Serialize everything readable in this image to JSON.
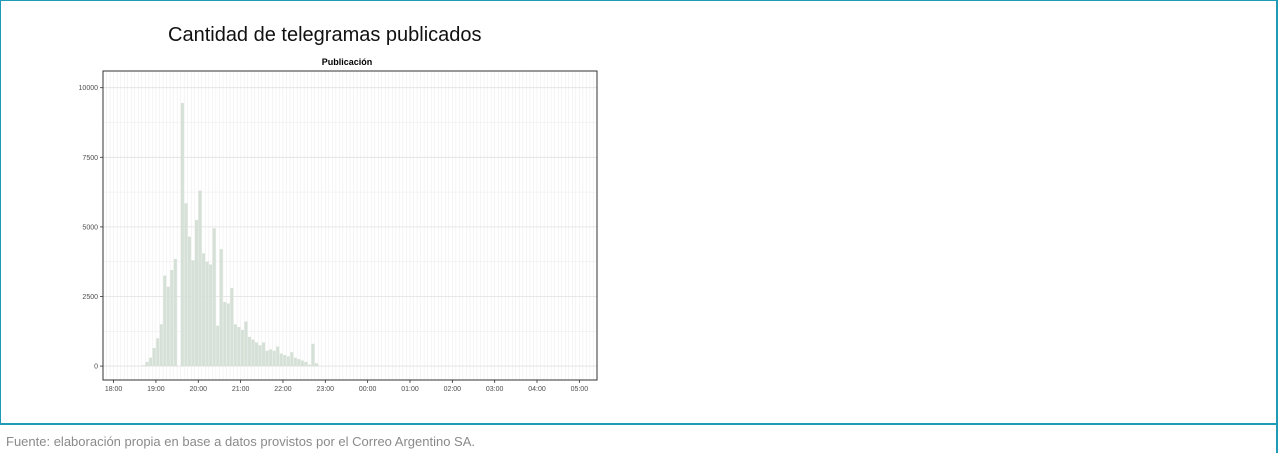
{
  "header": {
    "title": "Cantidad de telegramas publicados"
  },
  "footer": {
    "source": "Fuente: elaboración propia en base a datos provistos por el Correo Argentino SA."
  },
  "colors": {
    "bar": "#d5e0d6",
    "frame": "#1f9bb5",
    "grid": "#ebebeb",
    "panel_border": "#333333"
  },
  "chart_data": {
    "type": "bar",
    "title": "Publicación",
    "xlabel": "",
    "ylabel": "",
    "ylim": [
      -500,
      10600
    ],
    "xlim": [
      "17:45",
      "05:25"
    ],
    "y_ticks": [
      0,
      2500,
      5000,
      7500,
      10000
    ],
    "y_tick_labels": [
      "0",
      "2500",
      "5000",
      "7500",
      "10000"
    ],
    "x_ticks": [
      "18:00",
      "19:00",
      "20:00",
      "21:00",
      "22:00",
      "23:00",
      "00:00",
      "01:00",
      "02:00",
      "03:00",
      "04:00",
      "05:00"
    ],
    "x_tick_labels": [
      "18:00",
      "19:00",
      "20:00",
      "21:00",
      "22:00",
      "23:00",
      "00:00",
      "01:00",
      "02:00",
      "03:00",
      "04:00",
      "05:00"
    ],
    "grid": true,
    "bin_minutes": 5,
    "x": [
      "18:40",
      "18:45",
      "18:50",
      "18:55",
      "19:00",
      "19:05",
      "19:10",
      "19:15",
      "19:20",
      "19:25",
      "19:30",
      "19:35",
      "19:40",
      "19:45",
      "19:50",
      "19:55",
      "20:00",
      "20:05",
      "20:10",
      "20:15",
      "20:20",
      "20:25",
      "20:30",
      "20:35",
      "20:40",
      "20:45",
      "20:50",
      "20:55",
      "21:00",
      "21:05",
      "21:10",
      "21:15",
      "21:20",
      "21:25",
      "21:30",
      "21:35",
      "21:40",
      "21:45",
      "21:50",
      "21:55",
      "22:00",
      "22:05",
      "22:10",
      "22:15",
      "22:20",
      "22:25",
      "22:30",
      "22:35",
      "22:40",
      "22:45",
      "22:50",
      "22:55",
      "23:00",
      "23:05",
      "23:10",
      "23:15",
      "23:20",
      "23:25",
      "23:30",
      "23:35",
      "23:40",
      "23:45",
      "23:50",
      "01:15",
      "01:20"
    ],
    "values": [
      30,
      150,
      300,
      650,
      1000,
      1500,
      3250,
      2850,
      3450,
      3850,
      0,
      9450,
      5850,
      4650,
      3800,
      5250,
      6300,
      4050,
      3750,
      3650,
      4950,
      1450,
      4200,
      2300,
      2250,
      2800,
      1500,
      1400,
      1300,
      1600,
      1050,
      950,
      850,
      750,
      850,
      550,
      600,
      550,
      700,
      450,
      400,
      350,
      500,
      300,
      250,
      200,
      150,
      50,
      800,
      100,
      0,
      0,
      0,
      0,
      0,
      0,
      0,
      0,
      0,
      0,
      0,
      0,
      0,
      0,
      0
    ]
  }
}
